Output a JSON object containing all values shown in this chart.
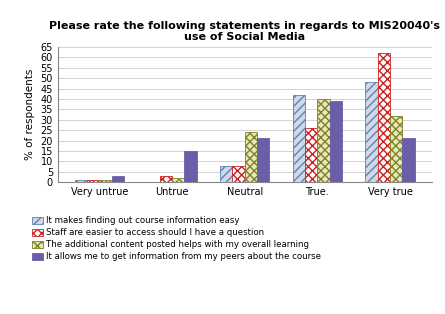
{
  "title": "Please rate the following statements in regards to MIS20040's\nuse of Social Media",
  "ylabel": "% of respondents",
  "categories": [
    "Very untrue",
    "Untrue",
    "Neutral",
    "True.",
    "Very true"
  ],
  "series": {
    "It makes finding out course information easy": [
      1,
      0,
      8,
      42,
      48
    ],
    "Staff are easier to access should I have a question": [
      1,
      3,
      8,
      26,
      62
    ],
    "The additional content posted helps with my overall learning": [
      1,
      2,
      24,
      40,
      32
    ],
    "It allows me to get information from my peers about the course": [
      3,
      15,
      21,
      39,
      21
    ]
  },
  "ylim": [
    0,
    65
  ],
  "yticks": [
    0,
    5,
    10,
    15,
    20,
    25,
    30,
    35,
    40,
    45,
    50,
    55,
    60,
    65
  ],
  "hatch_patterns": [
    "////",
    "xxxx",
    "xxxx",
    ""
  ],
  "bar_face_colors": [
    "#d0d8e8",
    "#ffffff",
    "#e8e8c0",
    "#6b5ea8"
  ],
  "bar_edge_colors": [
    "#6080b0",
    "#cc2020",
    "#808020",
    "#6b5ea8"
  ],
  "legend_labels": [
    "It makes finding out course information easy",
    "Staff are easier to access should I have a question",
    "The additional content posted helps with my overall learning",
    "It allows me to get information from my peers about the course"
  ],
  "legend_hatch": [
    "////",
    "xxxx",
    "xxxx",
    ""
  ],
  "legend_face_colors": [
    "#d0d8e8",
    "#ffffff",
    "#e8e8c0",
    "#6b5ea8"
  ],
  "legend_edge_colors": [
    "#6080b0",
    "#cc2020",
    "#808020",
    "#6b5ea8"
  ],
  "bar_width": 0.17,
  "figsize": [
    4.45,
    3.14
  ],
  "dpi": 100
}
